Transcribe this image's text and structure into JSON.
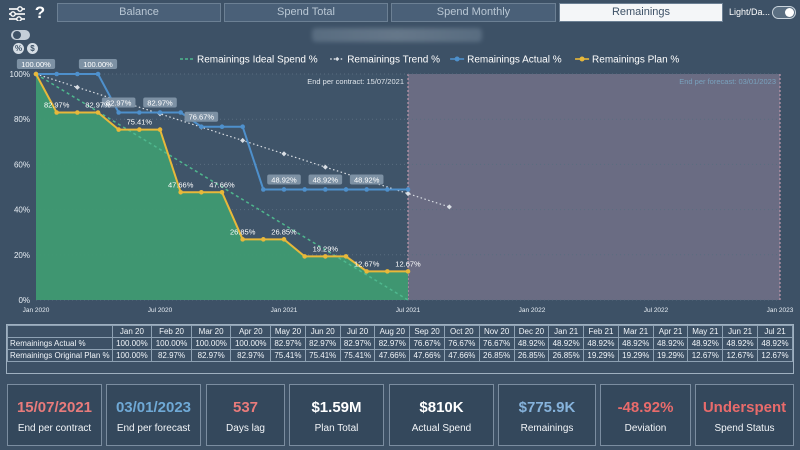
{
  "header": {
    "tabs": [
      {
        "label": "Balance",
        "active": false
      },
      {
        "label": "Spend Total",
        "active": false
      },
      {
        "label": "Spend Monthly",
        "active": false
      },
      {
        "label": "Remainings",
        "active": true
      }
    ],
    "settings_icon": "sliders-icon",
    "help_icon": "help-icon",
    "help_glyph": "?",
    "theme_toggle_label": "Light/Da..."
  },
  "controls": {
    "percent_glyph": "%",
    "dollar_glyph": "$"
  },
  "chart_data": {
    "type": "line",
    "legend_position": "top-center",
    "y_ticks": [
      "100%",
      "80%",
      "60%",
      "40%",
      "20%",
      "0%"
    ],
    "ylim": [
      0,
      100
    ],
    "x_tick_labels": [
      "Jan 2020",
      "Jul 2020",
      "Jan 2021",
      "Jul 2021",
      "Jan 2022",
      "Jul 2022",
      "Jan 2023"
    ],
    "grid": true,
    "series": [
      {
        "name": "Remainings Ideal Spend %",
        "style": "dashed",
        "color": "#4fb88e",
        "x": [
          "Jan 2020",
          "Jul 2021"
        ],
        "values": [
          100,
          0
        ]
      },
      {
        "name": "Remainings Trend %",
        "style": "dotted",
        "color": "#d9dee4",
        "x": [
          "Jan 2020",
          "Feb 2020",
          "Mar 2020",
          "Apr 2020",
          "May 2020",
          "Jun 2020",
          "Jul 2020",
          "Aug 2020",
          "Sep 2020",
          "Oct 2020",
          "Nov 2020",
          "Dec 2020",
          "Jan 2021",
          "Feb 2021",
          "Mar 2021",
          "Apr 2021",
          "May 2021",
          "Jun 2021",
          "Jul 2021",
          "Aug 2021",
          "Sep 2021"
        ],
        "values": [
          100,
          97.1,
          94.1,
          91.2,
          88.2,
          85.3,
          82.4,
          79.4,
          76.5,
          73.5,
          70.6,
          67.6,
          64.7,
          61.8,
          58.8,
          55.9,
          52.9,
          50,
          47.1,
          44.1,
          41.2
        ]
      },
      {
        "name": "Remainings Actual %",
        "style": "solid",
        "color": "#4e90cc",
        "x": [
          "Jan 2020",
          "Feb 2020",
          "Mar 2020",
          "Apr 2020",
          "May 2020",
          "Jun 2020",
          "Jul 2020",
          "Aug 2020",
          "Sep 2020",
          "Oct 2020",
          "Nov 2020",
          "Dec 2020",
          "Jan 2021",
          "Feb 2021",
          "Mar 2021",
          "Apr 2021",
          "May 2021",
          "Jun 2021",
          "Jul 2021"
        ],
        "values": [
          100,
          100,
          100,
          100,
          82.97,
          82.97,
          82.97,
          82.97,
          76.67,
          76.67,
          76.67,
          48.92,
          48.92,
          48.92,
          48.92,
          48.92,
          48.92,
          48.92,
          48.92
        ]
      },
      {
        "name": "Remainings Plan %",
        "style": "solid",
        "color": "#e8b83a",
        "area_color": "#3f9a72",
        "x": [
          "Jan 2020",
          "Feb 2020",
          "Mar 2020",
          "Apr 2020",
          "May 2020",
          "Jun 2020",
          "Jul 2020",
          "Aug 2020",
          "Sep 2020",
          "Oct 2020",
          "Nov 2020",
          "Dec 2020",
          "Jan 2021",
          "Feb 2021",
          "Mar 2021",
          "Apr 2021",
          "May 2021",
          "Jun 2021",
          "Jul 2021"
        ],
        "values": [
          100,
          82.97,
          82.97,
          82.97,
          75.41,
          75.41,
          75.41,
          47.66,
          47.66,
          47.66,
          26.85,
          26.85,
          26.85,
          19.29,
          19.29,
          19.29,
          12.67,
          12.67,
          12.67
        ]
      }
    ],
    "data_labels": [
      {
        "series": "Remainings Actual %",
        "x": "Jan 2020",
        "text": "100.00%"
      },
      {
        "series": "Remainings Actual %",
        "x": "Apr 2020",
        "text": "100.00%"
      },
      {
        "series": "Remainings Actual %",
        "x": "May 2020",
        "text": "82.97%"
      },
      {
        "series": "Remainings Actual %",
        "x": "Jul 2020",
        "text": "82.97%"
      },
      {
        "series": "Remainings Actual %",
        "x": "Sep 2020",
        "text": "76.67%"
      },
      {
        "series": "Remainings Actual %",
        "x": "Jan 2021",
        "text": "48.92%"
      },
      {
        "series": "Remainings Actual %",
        "x": "Mar 2021",
        "text": "48.92%"
      },
      {
        "series": "Remainings Actual %",
        "x": "May 2021",
        "text": "48.92%"
      },
      {
        "series": "Remainings Plan %",
        "x": "Feb 2020",
        "text": "82.97%"
      },
      {
        "series": "Remainings Plan %",
        "x": "Apr 2020",
        "text": "82.97%"
      },
      {
        "series": "Remainings Plan %",
        "x": "Jun 2020",
        "text": "75.41%"
      },
      {
        "series": "Remainings Plan %",
        "x": "Aug 2020",
        "text": "47.66%"
      },
      {
        "series": "Remainings Plan %",
        "x": "Oct 2020",
        "text": "47.66%"
      },
      {
        "series": "Remainings Plan %",
        "x": "Nov 2020",
        "text": "26.85%"
      },
      {
        "series": "Remainings Plan %",
        "x": "Jan 2021",
        "text": "26.85%"
      },
      {
        "series": "Remainings Plan %",
        "x": "Mar 2021",
        "text": "19.29%"
      },
      {
        "series": "Remainings Plan %",
        "x": "May 2021",
        "text": "12.67%"
      },
      {
        "series": "Remainings Plan %",
        "x": "Jul 2021",
        "text": "12.67%"
      }
    ],
    "annotations": {
      "end_contract": {
        "date": "Jul 2021",
        "label": "End per contract: 15/07/2021"
      },
      "end_forecast": {
        "date": "Jan 2023",
        "label": "End per forecast: 03/01/2023"
      }
    },
    "colors": {
      "forecast_region": "#6f6f86",
      "plot_bg": "#3f5469",
      "grid": "#596d80"
    }
  },
  "table": {
    "columns": [
      "Jan 20",
      "Feb 20",
      "Mar 20",
      "Apr 20",
      "May 20",
      "Jun 20",
      "Jul 20",
      "Aug 20",
      "Sep 20",
      "Oct 20",
      "Nov 20",
      "Dec 20",
      "Jan 21",
      "Feb 21",
      "Mar 21",
      "Apr 21",
      "May 21",
      "Jun 21",
      "Jul 21"
    ],
    "rows": [
      {
        "label": "Remainings Actual %",
        "values": [
          "100.00%",
          "100.00%",
          "100.00%",
          "100.00%",
          "82.97%",
          "82.97%",
          "82.97%",
          "82.97%",
          "76.67%",
          "76.67%",
          "76.67%",
          "48.92%",
          "48.92%",
          "48.92%",
          "48.92%",
          "48.92%",
          "48.92%",
          "48.92%",
          "48.92%"
        ]
      },
      {
        "label": "Remainings Original Plan %",
        "values": [
          "100.00%",
          "82.97%",
          "82.97%",
          "82.97%",
          "75.41%",
          "75.41%",
          "75.41%",
          "47.66%",
          "47.66%",
          "47.66%",
          "26.85%",
          "26.85%",
          "26.85%",
          "19.29%",
          "19.29%",
          "19.29%",
          "12.67%",
          "12.67%",
          "12.67%"
        ]
      }
    ]
  },
  "kpis": [
    {
      "value": "15/07/2021",
      "label": "End per contract",
      "color": "#e97b7b"
    },
    {
      "value": "03/01/2023",
      "label": "End per forecast",
      "color": "#6fa9d6"
    },
    {
      "value": "537",
      "label": "Days lag",
      "color": "#e97b7b"
    },
    {
      "value": "$1.59M",
      "label": "Plan Total",
      "color": "#ffffff"
    },
    {
      "value": "$810K",
      "label": "Actual Spend",
      "color": "#ffffff"
    },
    {
      "value": "$775.9K",
      "label": "Remainings",
      "color": "#86b3dc"
    },
    {
      "value": "-48.92%",
      "label": "Deviation",
      "color": "#e96b6b"
    },
    {
      "value": "Underspent",
      "label": "Spend Status",
      "color": "#e96b6b"
    }
  ]
}
